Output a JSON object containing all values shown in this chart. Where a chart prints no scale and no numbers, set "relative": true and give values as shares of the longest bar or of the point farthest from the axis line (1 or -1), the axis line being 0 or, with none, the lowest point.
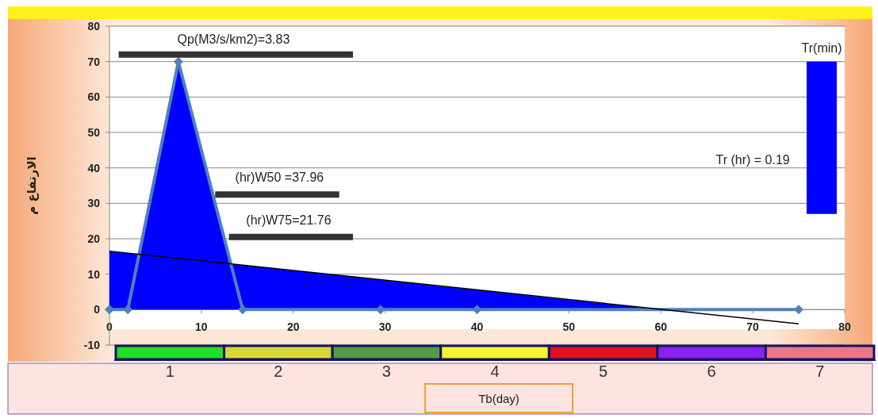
{
  "chart_data": [
    {
      "type": "area",
      "ylabel": "الارتفاع م",
      "xlabel": "Tb(day)",
      "xlim": [
        0,
        80
      ],
      "xticks": [
        0,
        10,
        20,
        30,
        40,
        50,
        60,
        70,
        80
      ],
      "ylim": [
        -10,
        80
      ],
      "yticks": [
        -10,
        0,
        10,
        20,
        30,
        40,
        50,
        60,
        70,
        80
      ],
      "grid": "y",
      "series": [
        {
          "color": "#0000ff",
          "x": [
            0,
            3.2,
            7.5,
            13.2,
            60
          ],
          "values": [
            16.5,
            15.6,
            70,
            12.9,
            0
          ]
        },
        {
          "type": "line",
          "color": "#4f81bd",
          "marker": "diamond",
          "x": [
            0,
            2,
            7.5,
            14.5,
            29.5,
            40,
            75
          ],
          "values": [
            0,
            0,
            70,
            0,
            0,
            0,
            0
          ]
        },
        {
          "type": "line",
          "color": "#000000",
          "line_style": "solid",
          "x": [
            0,
            75
          ],
          "values": [
            16.5,
            -4
          ]
        },
        {
          "type": "line",
          "color": "#333333",
          "x": [
            1,
            26.5
          ],
          "values": [
            72,
            72
          ]
        },
        {
          "type": "line",
          "color": "#333333",
          "x": [
            11.5,
            25
          ],
          "values": [
            32.5,
            32.5
          ]
        },
        {
          "type": "line",
          "color": "#333333",
          "x": [
            13,
            26.5
          ],
          "values": [
            20.5,
            20.5
          ]
        },
        {
          "type": "bar",
          "color": "#0000ff",
          "x": [
            77.5
          ],
          "base": [
            27
          ],
          "values": [
            43
          ]
        }
      ],
      "annotations": [
        "Qp(M3/s/km2)=3.83",
        "(hr)W50 =37.96",
        "(hr)W75=21.76",
        {
          "text": "Tr(min)",
          "x": 77.5,
          "y": 70
        },
        "Tr (hr) = 0.19"
      ]
    },
    {
      "type": "bar",
      "relative": true,
      "categories": [
        "1",
        "2",
        "3",
        "4",
        "5",
        "6",
        "7"
      ],
      "values": [
        1,
        1,
        1,
        1,
        1,
        1,
        1
      ],
      "colors": [
        "#22dd22",
        "#d8d830",
        "#559944",
        "#f5f530",
        "#e01020",
        "#8822ee",
        "#e87888"
      ]
    }
  ]
}
